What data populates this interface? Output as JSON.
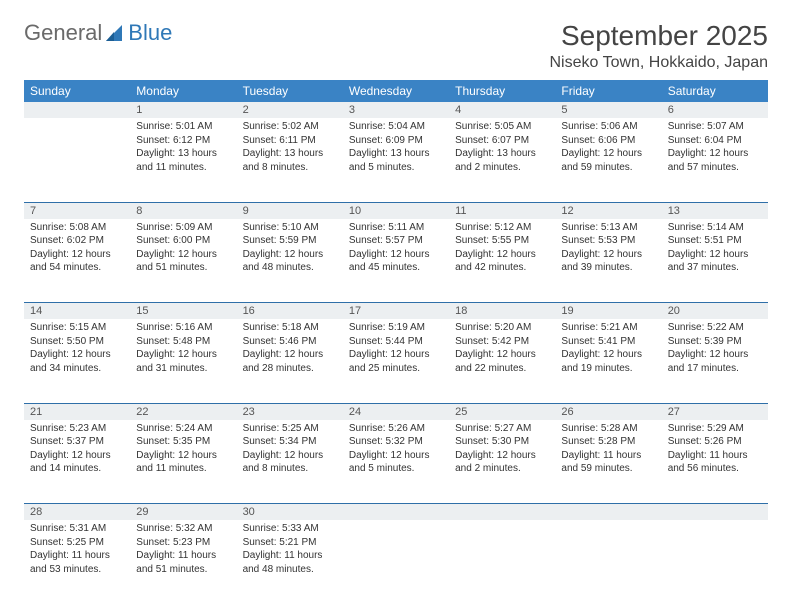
{
  "logo": {
    "general": "General",
    "blue": "Blue"
  },
  "title": "September 2025",
  "location": "Niseko Town, Hokkaido, Japan",
  "columns": [
    "Sunday",
    "Monday",
    "Tuesday",
    "Wednesday",
    "Thursday",
    "Friday",
    "Saturday"
  ],
  "colors": {
    "header_bg": "#3a83c5",
    "header_text": "#ffffff",
    "daynum_bg": "#eceff1",
    "row_border": "#2f6fa8",
    "logo_gray": "#6a6a6a",
    "logo_blue": "#2f78b7"
  },
  "weeks": [
    {
      "nums": [
        "",
        "1",
        "2",
        "3",
        "4",
        "5",
        "6"
      ],
      "cells": [
        {
          "sunrise": "",
          "sunset": "",
          "daylight": ""
        },
        {
          "sunrise": "Sunrise: 5:01 AM",
          "sunset": "Sunset: 6:12 PM",
          "daylight": "Daylight: 13 hours and 11 minutes."
        },
        {
          "sunrise": "Sunrise: 5:02 AM",
          "sunset": "Sunset: 6:11 PM",
          "daylight": "Daylight: 13 hours and 8 minutes."
        },
        {
          "sunrise": "Sunrise: 5:04 AM",
          "sunset": "Sunset: 6:09 PM",
          "daylight": "Daylight: 13 hours and 5 minutes."
        },
        {
          "sunrise": "Sunrise: 5:05 AM",
          "sunset": "Sunset: 6:07 PM",
          "daylight": "Daylight: 13 hours and 2 minutes."
        },
        {
          "sunrise": "Sunrise: 5:06 AM",
          "sunset": "Sunset: 6:06 PM",
          "daylight": "Daylight: 12 hours and 59 minutes."
        },
        {
          "sunrise": "Sunrise: 5:07 AM",
          "sunset": "Sunset: 6:04 PM",
          "daylight": "Daylight: 12 hours and 57 minutes."
        }
      ]
    },
    {
      "nums": [
        "7",
        "8",
        "9",
        "10",
        "11",
        "12",
        "13"
      ],
      "cells": [
        {
          "sunrise": "Sunrise: 5:08 AM",
          "sunset": "Sunset: 6:02 PM",
          "daylight": "Daylight: 12 hours and 54 minutes."
        },
        {
          "sunrise": "Sunrise: 5:09 AM",
          "sunset": "Sunset: 6:00 PM",
          "daylight": "Daylight: 12 hours and 51 minutes."
        },
        {
          "sunrise": "Sunrise: 5:10 AM",
          "sunset": "Sunset: 5:59 PM",
          "daylight": "Daylight: 12 hours and 48 minutes."
        },
        {
          "sunrise": "Sunrise: 5:11 AM",
          "sunset": "Sunset: 5:57 PM",
          "daylight": "Daylight: 12 hours and 45 minutes."
        },
        {
          "sunrise": "Sunrise: 5:12 AM",
          "sunset": "Sunset: 5:55 PM",
          "daylight": "Daylight: 12 hours and 42 minutes."
        },
        {
          "sunrise": "Sunrise: 5:13 AM",
          "sunset": "Sunset: 5:53 PM",
          "daylight": "Daylight: 12 hours and 39 minutes."
        },
        {
          "sunrise": "Sunrise: 5:14 AM",
          "sunset": "Sunset: 5:51 PM",
          "daylight": "Daylight: 12 hours and 37 minutes."
        }
      ]
    },
    {
      "nums": [
        "14",
        "15",
        "16",
        "17",
        "18",
        "19",
        "20"
      ],
      "cells": [
        {
          "sunrise": "Sunrise: 5:15 AM",
          "sunset": "Sunset: 5:50 PM",
          "daylight": "Daylight: 12 hours and 34 minutes."
        },
        {
          "sunrise": "Sunrise: 5:16 AM",
          "sunset": "Sunset: 5:48 PM",
          "daylight": "Daylight: 12 hours and 31 minutes."
        },
        {
          "sunrise": "Sunrise: 5:18 AM",
          "sunset": "Sunset: 5:46 PM",
          "daylight": "Daylight: 12 hours and 28 minutes."
        },
        {
          "sunrise": "Sunrise: 5:19 AM",
          "sunset": "Sunset: 5:44 PM",
          "daylight": "Daylight: 12 hours and 25 minutes."
        },
        {
          "sunrise": "Sunrise: 5:20 AM",
          "sunset": "Sunset: 5:42 PM",
          "daylight": "Daylight: 12 hours and 22 minutes."
        },
        {
          "sunrise": "Sunrise: 5:21 AM",
          "sunset": "Sunset: 5:41 PM",
          "daylight": "Daylight: 12 hours and 19 minutes."
        },
        {
          "sunrise": "Sunrise: 5:22 AM",
          "sunset": "Sunset: 5:39 PM",
          "daylight": "Daylight: 12 hours and 17 minutes."
        }
      ]
    },
    {
      "nums": [
        "21",
        "22",
        "23",
        "24",
        "25",
        "26",
        "27"
      ],
      "cells": [
        {
          "sunrise": "Sunrise: 5:23 AM",
          "sunset": "Sunset: 5:37 PM",
          "daylight": "Daylight: 12 hours and 14 minutes."
        },
        {
          "sunrise": "Sunrise: 5:24 AM",
          "sunset": "Sunset: 5:35 PM",
          "daylight": "Daylight: 12 hours and 11 minutes."
        },
        {
          "sunrise": "Sunrise: 5:25 AM",
          "sunset": "Sunset: 5:34 PM",
          "daylight": "Daylight: 12 hours and 8 minutes."
        },
        {
          "sunrise": "Sunrise: 5:26 AM",
          "sunset": "Sunset: 5:32 PM",
          "daylight": "Daylight: 12 hours and 5 minutes."
        },
        {
          "sunrise": "Sunrise: 5:27 AM",
          "sunset": "Sunset: 5:30 PM",
          "daylight": "Daylight: 12 hours and 2 minutes."
        },
        {
          "sunrise": "Sunrise: 5:28 AM",
          "sunset": "Sunset: 5:28 PM",
          "daylight": "Daylight: 11 hours and 59 minutes."
        },
        {
          "sunrise": "Sunrise: 5:29 AM",
          "sunset": "Sunset: 5:26 PM",
          "daylight": "Daylight: 11 hours and 56 minutes."
        }
      ]
    },
    {
      "nums": [
        "28",
        "29",
        "30",
        "",
        "",
        "",
        ""
      ],
      "cells": [
        {
          "sunrise": "Sunrise: 5:31 AM",
          "sunset": "Sunset: 5:25 PM",
          "daylight": "Daylight: 11 hours and 53 minutes."
        },
        {
          "sunrise": "Sunrise: 5:32 AM",
          "sunset": "Sunset: 5:23 PM",
          "daylight": "Daylight: 11 hours and 51 minutes."
        },
        {
          "sunrise": "Sunrise: 5:33 AM",
          "sunset": "Sunset: 5:21 PM",
          "daylight": "Daylight: 11 hours and 48 minutes."
        },
        {
          "sunrise": "",
          "sunset": "",
          "daylight": ""
        },
        {
          "sunrise": "",
          "sunset": "",
          "daylight": ""
        },
        {
          "sunrise": "",
          "sunset": "",
          "daylight": ""
        },
        {
          "sunrise": "",
          "sunset": "",
          "daylight": ""
        }
      ]
    }
  ]
}
